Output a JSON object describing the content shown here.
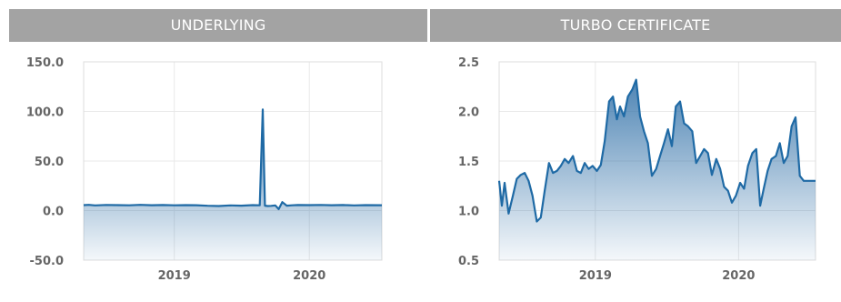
{
  "panels": {
    "left": {
      "title": "UNDERLYING"
    },
    "right": {
      "title": "TURBO CERTIFICATE"
    }
  },
  "colors": {
    "line": "#1f6aa5",
    "fill": "#2f6fa7",
    "header_bg": "#a3a3a3",
    "header_text": "#ffffff"
  },
  "chart_data": [
    {
      "type": "line",
      "id": "underlying",
      "title": "UNDERLYING",
      "xlabel": "",
      "ylabel": "",
      "ylim": [
        -50,
        150
      ],
      "yticks": [
        "150.0",
        "100.0",
        "50.0",
        "0.0",
        "-50.0"
      ],
      "xlim": [
        "2018-05-01",
        "2020-07-15"
      ],
      "xticks": [
        {
          "label": "2019",
          "date": "2019-01-01"
        },
        {
          "label": "2020",
          "date": "2020-01-01"
        }
      ],
      "grid": true,
      "area": true,
      "series": [
        {
          "x": [
            "2018-05-01",
            "2018-05-15",
            "2018-06-01",
            "2018-07-01",
            "2018-08-01",
            "2018-09-01",
            "2018-10-01",
            "2018-11-01",
            "2018-12-01",
            "2019-01-01",
            "2019-02-01",
            "2019-03-01",
            "2019-04-01",
            "2019-05-01",
            "2019-06-01",
            "2019-07-01",
            "2019-08-01",
            "2019-08-20",
            "2019-08-28",
            "2019-09-03",
            "2019-09-10",
            "2019-09-20",
            "2019-10-01",
            "2019-10-10",
            "2019-10-20",
            "2019-11-01",
            "2019-11-15",
            "2019-12-01",
            "2020-01-01",
            "2020-02-01",
            "2020-03-01",
            "2020-04-01",
            "2020-05-01",
            "2020-06-01",
            "2020-07-15"
          ],
          "y": [
            5.5,
            5.8,
            5.2,
            5.7,
            5.5,
            5.3,
            5.8,
            5.4,
            5.6,
            5.3,
            5.5,
            5.4,
            4.9,
            4.6,
            5.2,
            5.0,
            5.5,
            5.3,
            102,
            5.0,
            4.6,
            4.8,
            5.2,
            1.5,
            8.5,
            5.0,
            5.3,
            5.6,
            5.5,
            5.7,
            5.4,
            5.6,
            5.2,
            5.5,
            5.4
          ]
        }
      ]
    },
    {
      "type": "line",
      "id": "turbo",
      "title": "TURBO CERTIFICATE",
      "xlabel": "",
      "ylabel": "",
      "ylim": [
        0.5,
        2.5
      ],
      "yticks": [
        "2.5",
        "2.0",
        "1.5",
        "1.0",
        "0.5"
      ],
      "xlim": [
        "2018-05-01",
        "2020-07-15"
      ],
      "xticks": [
        {
          "label": "2019",
          "date": "2019-01-01"
        },
        {
          "label": "2020",
          "date": "2020-01-01"
        }
      ],
      "grid": true,
      "area": true,
      "series": [
        {
          "x": [
            "2018-05-01",
            "2018-05-08",
            "2018-05-15",
            "2018-05-25",
            "2018-06-05",
            "2018-06-15",
            "2018-06-25",
            "2018-07-05",
            "2018-07-15",
            "2018-07-25",
            "2018-08-05",
            "2018-08-15",
            "2018-08-25",
            "2018-09-05",
            "2018-09-15",
            "2018-09-25",
            "2018-10-05",
            "2018-10-15",
            "2018-10-25",
            "2018-11-05",
            "2018-11-15",
            "2018-11-25",
            "2018-12-05",
            "2018-12-15",
            "2018-12-25",
            "2019-01-05",
            "2019-01-15",
            "2019-01-25",
            "2019-02-05",
            "2019-02-15",
            "2019-02-25",
            "2019-03-05",
            "2019-03-15",
            "2019-03-25",
            "2019-04-05",
            "2019-04-15",
            "2019-04-25",
            "2019-05-05",
            "2019-05-15",
            "2019-05-25",
            "2019-06-05",
            "2019-06-15",
            "2019-06-25",
            "2019-07-05",
            "2019-07-15",
            "2019-07-25",
            "2019-08-05",
            "2019-08-15",
            "2019-08-25",
            "2019-09-05",
            "2019-09-15",
            "2019-09-25",
            "2019-10-05",
            "2019-10-15",
            "2019-10-25",
            "2019-11-05",
            "2019-11-15",
            "2019-11-25",
            "2019-12-05",
            "2019-12-15",
            "2019-12-25",
            "2020-01-05",
            "2020-01-15",
            "2020-01-25",
            "2020-02-05",
            "2020-02-15",
            "2020-02-25",
            "2020-03-05",
            "2020-03-15",
            "2020-03-25",
            "2020-04-05",
            "2020-04-15",
            "2020-04-25",
            "2020-05-05",
            "2020-05-15",
            "2020-05-25",
            "2020-06-05",
            "2020-06-15",
            "2020-06-25",
            "2020-07-05",
            "2020-07-15"
          ],
          "y": [
            1.3,
            1.05,
            1.28,
            0.97,
            1.15,
            1.32,
            1.36,
            1.38,
            1.3,
            1.15,
            0.89,
            0.93,
            1.2,
            1.48,
            1.38,
            1.4,
            1.45,
            1.52,
            1.48,
            1.55,
            1.4,
            1.38,
            1.48,
            1.42,
            1.45,
            1.4,
            1.46,
            1.7,
            2.1,
            2.15,
            1.92,
            2.05,
            1.95,
            2.15,
            2.22,
            2.32,
            1.95,
            1.8,
            1.68,
            1.35,
            1.42,
            1.55,
            1.68,
            1.82,
            1.65,
            2.05,
            2.1,
            1.88,
            1.85,
            1.8,
            1.48,
            1.55,
            1.62,
            1.58,
            1.36,
            1.52,
            1.42,
            1.24,
            1.2,
            1.08,
            1.15,
            1.28,
            1.22,
            1.45,
            1.58,
            1.62,
            1.05,
            1.22,
            1.4,
            1.52,
            1.55,
            1.68,
            1.48,
            1.55,
            1.85,
            1.94,
            1.35,
            1.3,
            1.3,
            1.3,
            1.3
          ]
        }
      ]
    }
  ]
}
